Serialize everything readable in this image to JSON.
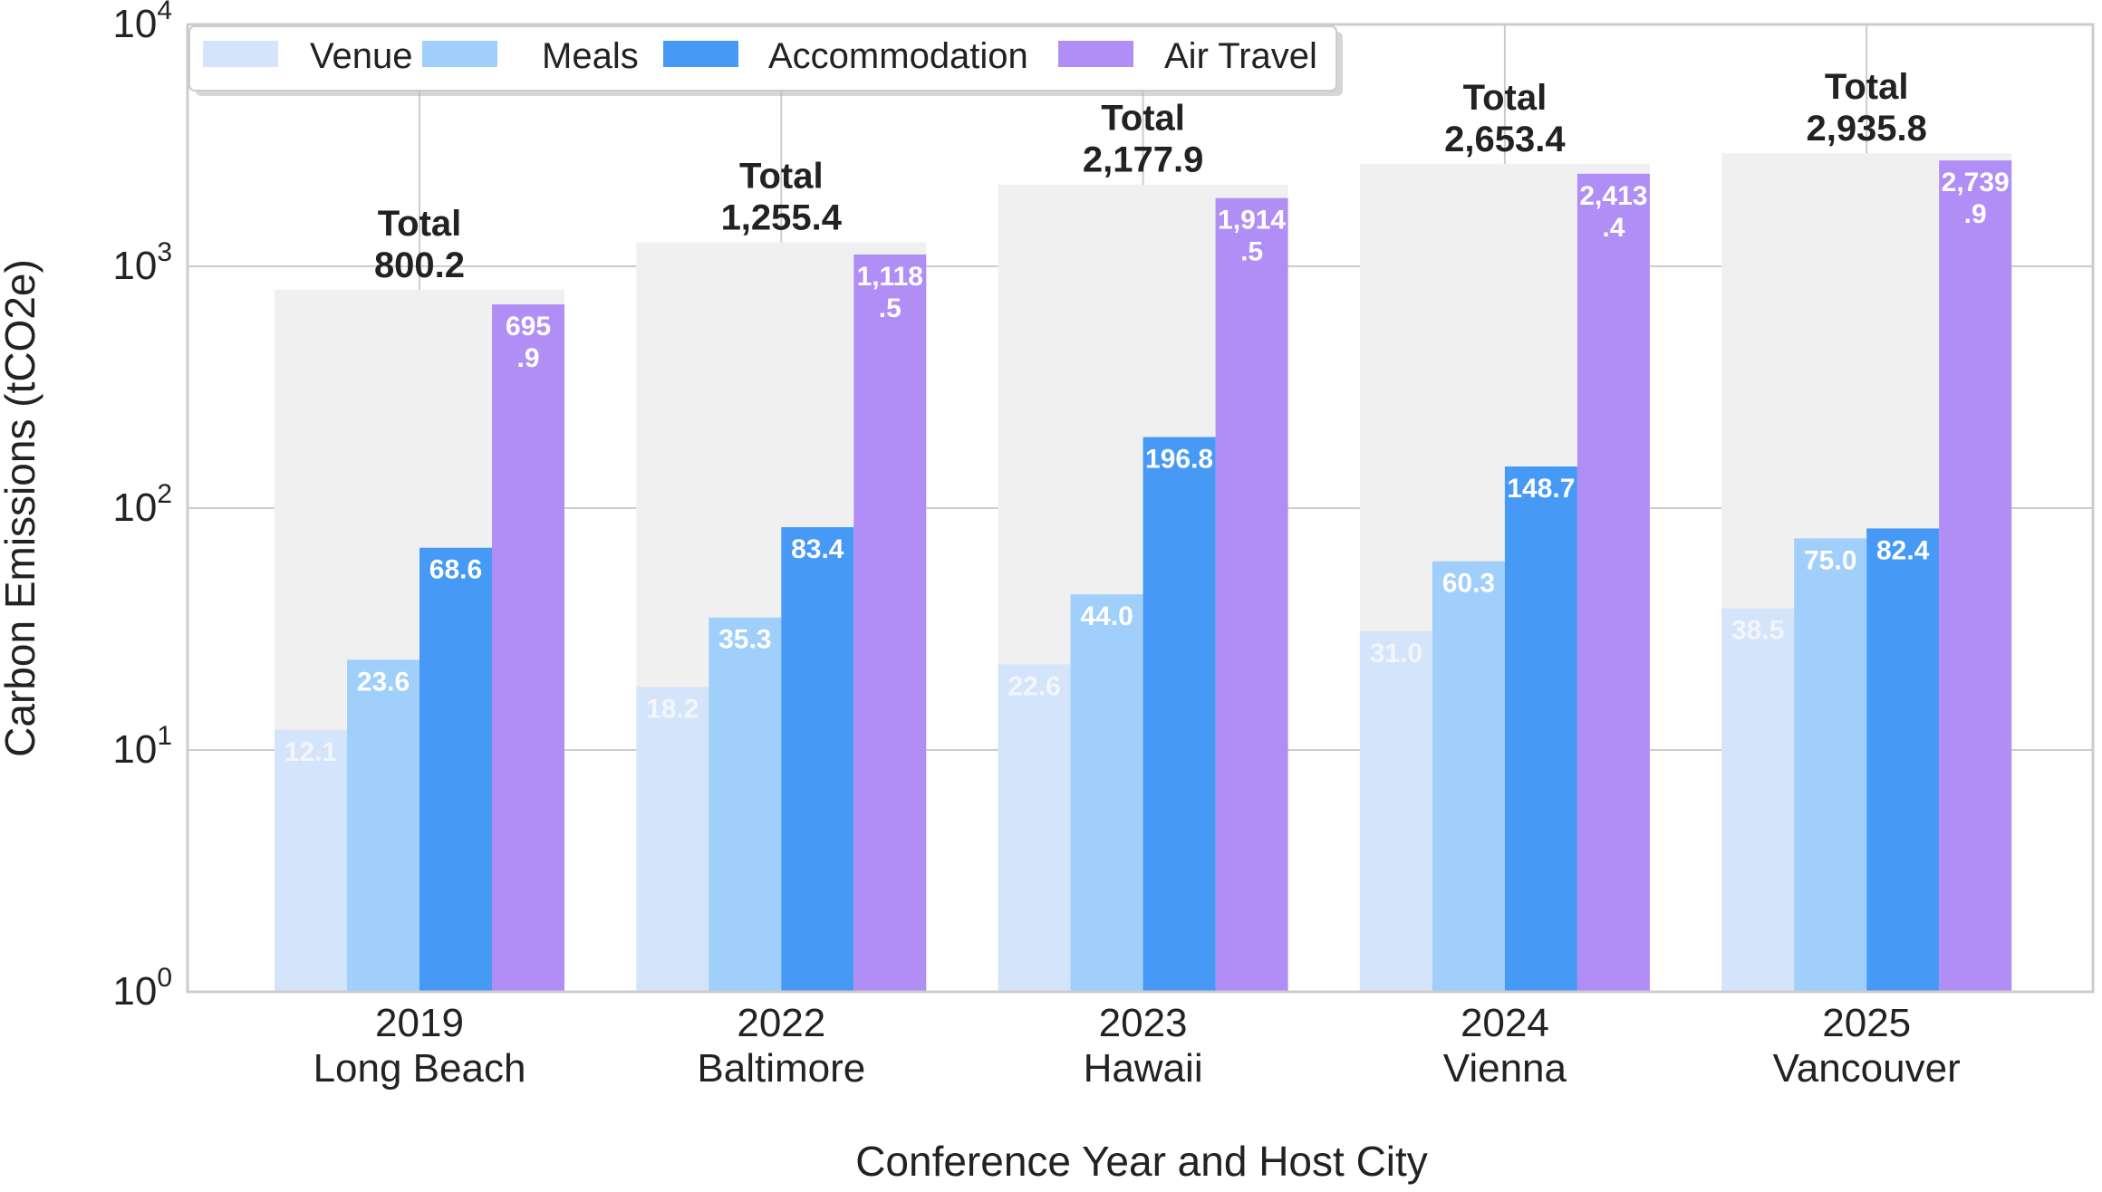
{
  "chart_data": {
    "type": "bar",
    "title": "",
    "xlabel": "Conference Year and Host City",
    "ylabel": "Carbon Emissions (tCO2e)",
    "yscale": "log",
    "ylim": [
      1,
      10000
    ],
    "yticks": [
      {
        "base": "10",
        "exp": "0"
      },
      {
        "base": "10",
        "exp": "1"
      },
      {
        "base": "10",
        "exp": "2"
      },
      {
        "base": "10",
        "exp": "3"
      },
      {
        "base": "10",
        "exp": "4"
      }
    ],
    "categories": [
      {
        "year": "2019",
        "city": "Long Beach"
      },
      {
        "year": "2022",
        "city": "Baltimore"
      },
      {
        "year": "2023",
        "city": "Hawaii"
      },
      {
        "year": "2024",
        "city": "Vienna"
      },
      {
        "year": "2025",
        "city": "Vancouver"
      }
    ],
    "series": [
      {
        "name": "Venue",
        "color": "#d4e4fa",
        "label_color": "#f2f6fc",
        "values": [
          12.1,
          18.2,
          22.6,
          31.0,
          38.5
        ],
        "labels": [
          [
            "12.1"
          ],
          [
            "18.2"
          ],
          [
            "22.6"
          ],
          [
            "31.0"
          ],
          [
            "38.5"
          ]
        ]
      },
      {
        "name": "Meals",
        "color": "#9fcffa",
        "label_color": "#ffffff",
        "values": [
          23.6,
          35.3,
          44.0,
          60.3,
          75.0
        ],
        "labels": [
          [
            "23.6"
          ],
          [
            "35.3"
          ],
          [
            "44.0"
          ],
          [
            "60.3"
          ],
          [
            "75.0"
          ]
        ]
      },
      {
        "name": "Accommodation",
        "color": "#4699f5",
        "label_color": "#ffffff",
        "values": [
          68.6,
          83.4,
          196.8,
          148.7,
          82.4
        ],
        "labels": [
          [
            "68.6"
          ],
          [
            "83.4"
          ],
          [
            "196.8"
          ],
          [
            "148.7"
          ],
          [
            "82.4"
          ]
        ]
      },
      {
        "name": "Air Travel",
        "color": "#b08ef5",
        "label_color": "#ffffff",
        "values": [
          695.9,
          1118.5,
          1914.5,
          2413.4,
          2739.9
        ],
        "labels": [
          [
            "695",
            ".9"
          ],
          [
            "1,118",
            ".5"
          ],
          [
            "1,914",
            ".5"
          ],
          [
            "2,413",
            ".4"
          ],
          [
            "2,739",
            ".9"
          ]
        ]
      }
    ],
    "totals": {
      "heading": "Total",
      "values": [
        800.2,
        1255.4,
        2177.9,
        2653.4,
        2935.8
      ],
      "labels": [
        "800.2",
        "1,255.4",
        "2,177.9",
        "2,653.4",
        "2,935.8"
      ],
      "color": "#f0f0f0"
    },
    "legend_position": "top-left",
    "grid": true
  }
}
